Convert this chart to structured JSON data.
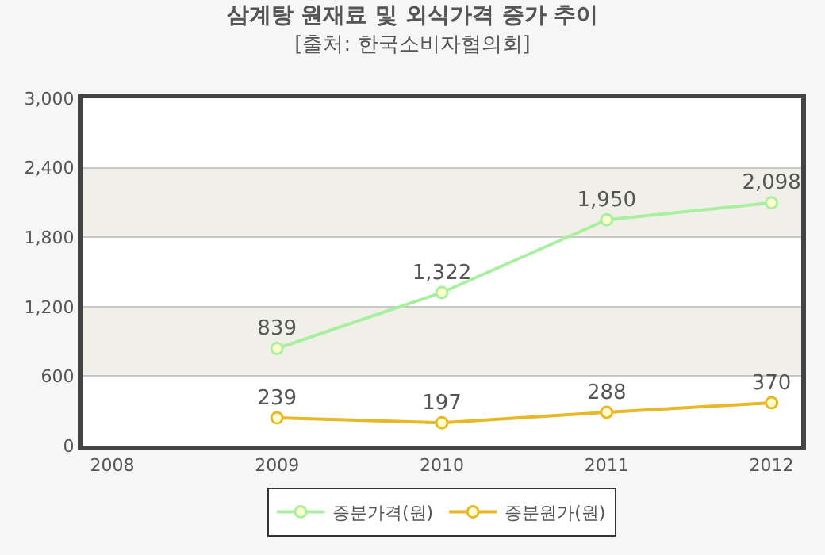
{
  "chart_data": {
    "type": "line",
    "title": "삼계탕 원재료 및 외식가격 증가 추이",
    "subtitle": "[출처: 한국소비자협의회]",
    "categories": [
      "2008",
      "2009",
      "2010",
      "2011",
      "2012"
    ],
    "series": [
      {
        "name": "증분가격(원)",
        "color": "#a8f0a0",
        "values": [
          null,
          839,
          1322,
          1950,
          2098
        ],
        "value_labels": [
          null,
          "839",
          "1,322",
          "1,950",
          "2,098"
        ]
      },
      {
        "name": "증분원가(원)",
        "color": "#e8b828",
        "values": [
          null,
          239,
          197,
          288,
          370
        ],
        "value_labels": [
          null,
          "239",
          "197",
          "288",
          "370"
        ]
      }
    ],
    "ylim": [
      0,
      3000
    ],
    "yticks": [
      {
        "value": 0,
        "label": "0"
      },
      {
        "value": 600,
        "label": "600"
      },
      {
        "value": 1200,
        "label": "1,200"
      },
      {
        "value": 1800,
        "label": "1,800"
      },
      {
        "value": 2400,
        "label": "2,400"
      },
      {
        "value": 3000,
        "label": "3,000"
      }
    ],
    "bands": [
      {
        "axis": "y",
        "from": 600,
        "to": 1200,
        "color": "#f0f0e8"
      },
      {
        "axis": "y",
        "from": 1800,
        "to": 2400,
        "color": "#f0f0e8"
      }
    ],
    "grid": "y",
    "legend": "bottom",
    "marker": "circle",
    "line_style": "solid"
  }
}
